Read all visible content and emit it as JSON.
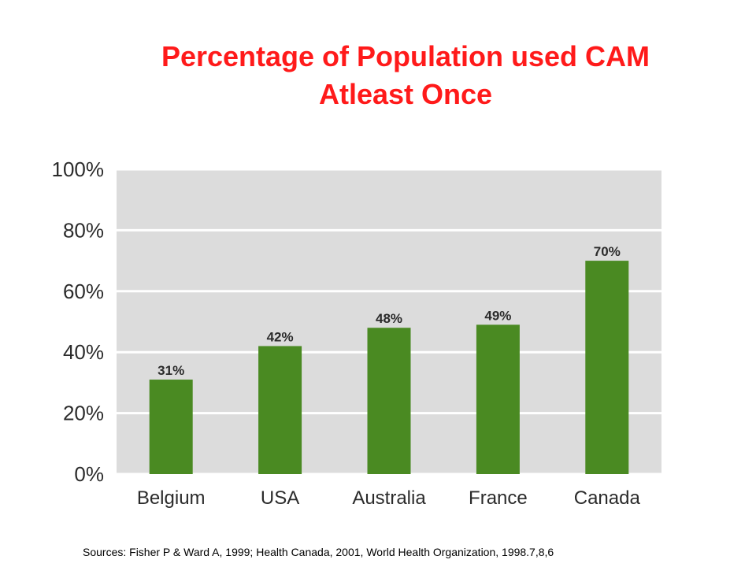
{
  "title_line1": "Percentage of Population used CAM",
  "title_line2": "Atleast Once",
  "source": "Sources: Fisher P & Ward A, 1999; Health Canada, 2001, World Health Organization, 1998.7,8,6",
  "colors": {
    "bar": "#4a8a22",
    "plot_bg": "#dcdcdc",
    "grid": "#ffffff",
    "title": "#ff1a1a",
    "text": "#2b2b2b"
  },
  "chart_data": {
    "type": "bar",
    "categories": [
      "Belgium",
      "USA",
      "Australia",
      "France",
      "Canada"
    ],
    "values": [
      31,
      42,
      48,
      49,
      70
    ],
    "data_labels": [
      "31%",
      "42%",
      "48%",
      "49%",
      "70%"
    ],
    "yticks": [
      "0%",
      "20%",
      "40%",
      "60%",
      "80%",
      "100%"
    ],
    "ylim": [
      0,
      100
    ],
    "grid": true,
    "title": "Percentage of Population used CAM Atleast Once"
  }
}
